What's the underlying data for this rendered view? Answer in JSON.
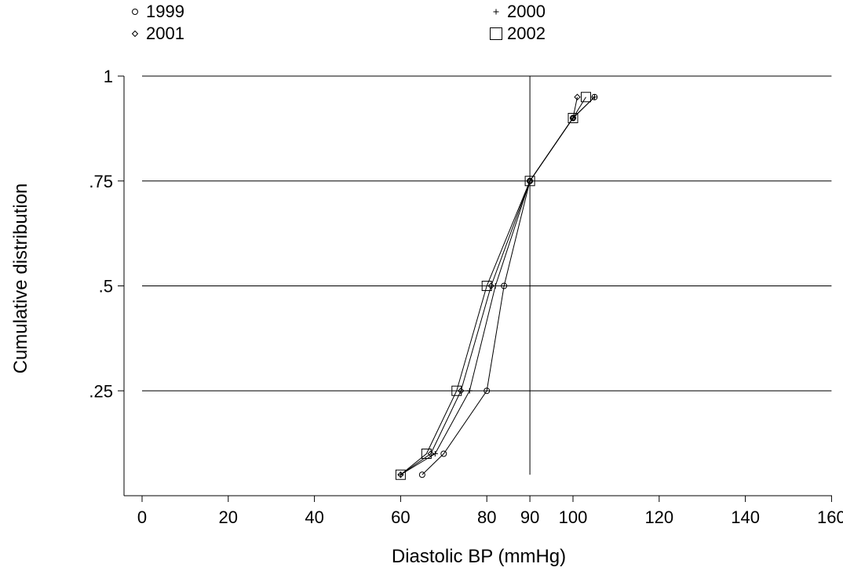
{
  "chart_data": {
    "type": "line",
    "title": "",
    "xlabel": "Diastolic BP (mmHg)",
    "ylabel": "Cumulative distribution",
    "xlim": [
      -4,
      160
    ],
    "ylim": [
      0,
      1
    ],
    "x_ticks": [
      0,
      20,
      40,
      60,
      80,
      90,
      100,
      120,
      140,
      160
    ],
    "x_tick_labels": [
      "0",
      "20",
      "40",
      "60",
      "80",
      "90",
      "100",
      "120",
      "140",
      "160"
    ],
    "y_ticks": [
      0.25,
      0.5,
      0.75,
      1
    ],
    "y_tick_labels": [
      ".25",
      ".5",
      ".75",
      "1"
    ],
    "grid": "horizontal",
    "reference_line_x": 90,
    "legend_placement": "top",
    "series": [
      {
        "name": "1999",
        "marker": "circle",
        "x": [
          65,
          70,
          80,
          84,
          90,
          100,
          105
        ],
        "y": [
          0.05,
          0.1,
          0.25,
          0.5,
          0.75,
          0.9,
          0.95
        ]
      },
      {
        "name": "2000",
        "marker": "plus",
        "x": [
          60,
          68,
          76,
          82,
          90,
          100,
          105
        ],
        "y": [
          0.05,
          0.1,
          0.25,
          0.5,
          0.75,
          0.9,
          0.95
        ]
      },
      {
        "name": "2001",
        "marker": "diamond",
        "x": [
          60,
          67,
          74,
          81,
          90,
          100,
          101
        ],
        "y": [
          0.05,
          0.1,
          0.25,
          0.5,
          0.75,
          0.9,
          0.95
        ]
      },
      {
        "name": "2002",
        "marker": "square",
        "x": [
          60,
          66,
          73,
          80,
          90,
          100,
          103
        ],
        "y": [
          0.05,
          0.1,
          0.25,
          0.5,
          0.75,
          0.9,
          0.95
        ]
      }
    ]
  }
}
